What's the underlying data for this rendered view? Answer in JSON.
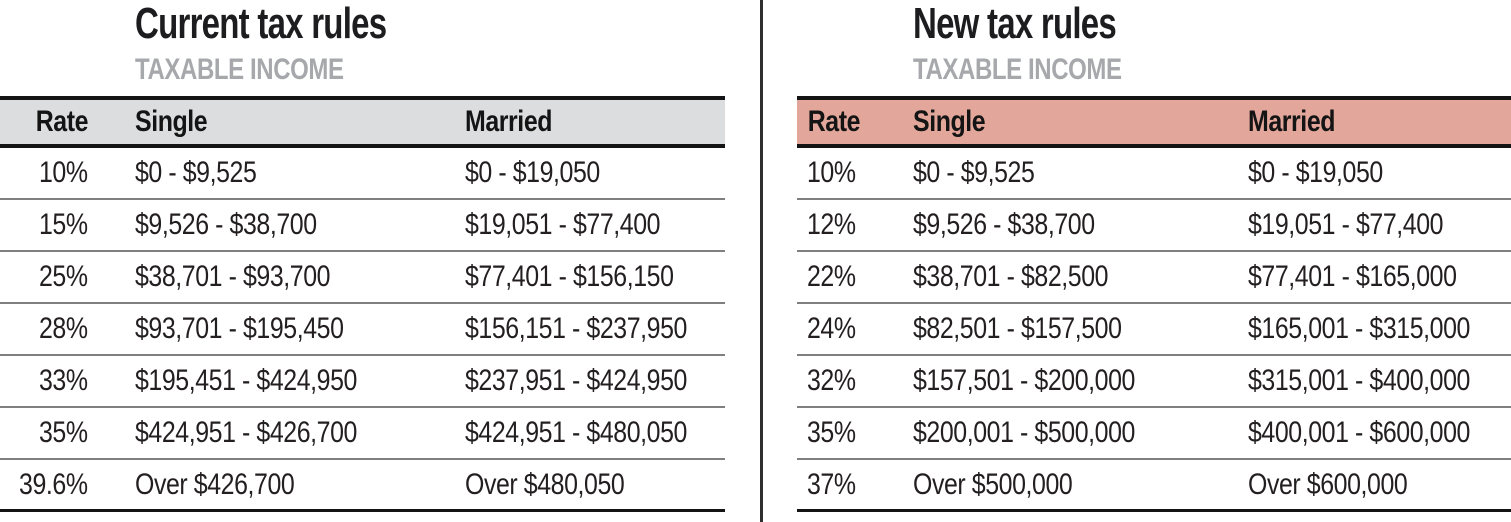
{
  "chart_data": [
    {
      "type": "table",
      "title": "Current tax rules",
      "subtitle": "TAXABLE INCOME",
      "header_bg": "#dcdddf",
      "columns": [
        "Rate",
        "Single",
        "Married"
      ],
      "rows": [
        [
          "10%",
          "$0 - $9,525",
          "$0 - $19,050"
        ],
        [
          "15%",
          "$9,526 - $38,700",
          "$19,051 - $77,400"
        ],
        [
          "25%",
          "$38,701 - $93,700",
          "$77,401 - $156,150"
        ],
        [
          "28%",
          "$93,701 - $195,450",
          "$156,151 - $237,950"
        ],
        [
          "33%",
          "$195,451 - $424,950",
          "$237,951 - $424,950"
        ],
        [
          "35%",
          "$424,951 - $426,700",
          "$424,951 - $480,050"
        ],
        [
          "39.6%",
          "Over $426,700",
          "Over $480,050"
        ]
      ]
    },
    {
      "type": "table",
      "title": "New tax rules",
      "subtitle": "TAXABLE INCOME",
      "header_bg": "#e2a79a",
      "columns": [
        "Rate",
        "Single",
        "Married"
      ],
      "rows": [
        [
          "10%",
          "$0 - $9,525",
          "$0 - $19,050"
        ],
        [
          "12%",
          "$9,526 - $38,700",
          "$19,051 - $77,400"
        ],
        [
          "22%",
          "$38,701 - $82,500",
          "$77,401 - $165,000"
        ],
        [
          "24%",
          "$82,501 - $157,500",
          "$165,001 - $315,000"
        ],
        [
          "32%",
          "$157,501 - $200,000",
          "$315,001 - $400,000"
        ],
        [
          "35%",
          "$200,001 - $500,000",
          "$400,001 - $600,000"
        ],
        [
          "37%",
          "Over $500,000",
          "Over $600,000"
        ]
      ]
    }
  ],
  "colors": {
    "current_header_bg": "#dcdddf",
    "new_header_bg": "#e2a79a",
    "heavy_rule": "#141414",
    "row_separator": "#7f8082",
    "divider": "#2e2e2e",
    "title_text": "#1d1d1f",
    "subtitle_text": "#a6a8ab",
    "body_text": "#231f20"
  }
}
